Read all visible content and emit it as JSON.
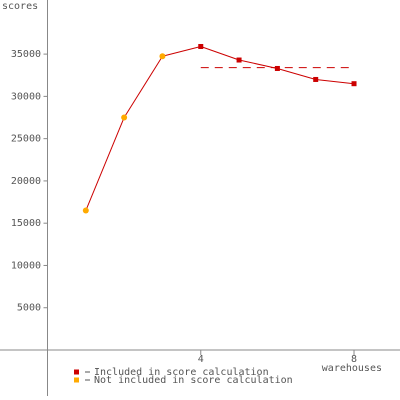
{
  "chart_data": {
    "type": "line",
    "y_label": "scores",
    "x_label": "warehouses",
    "x": [
      1,
      2,
      3,
      4,
      5,
      6,
      7,
      8
    ],
    "series": [
      {
        "name": "Included in score calculation",
        "color": "#cc0000",
        "values": [
          null,
          null,
          null,
          35900,
          34300,
          33300,
          32000,
          31500
        ]
      },
      {
        "name": "Not included in score calculation",
        "color": "#ffaa00",
        "values": [
          16500,
          27500,
          34750,
          null,
          null,
          null,
          null,
          null
        ]
      }
    ],
    "line_color": "#cc0000",
    "reference_line": {
      "value": 33400,
      "x": [
        4,
        8
      ],
      "color": "#cc0000"
    },
    "xlim": [
      0,
      9.2
    ],
    "ylim": [
      0,
      41400
    ],
    "xticks": [
      4,
      8
    ],
    "yticks": [
      5000,
      10000,
      15000,
      20000,
      25000,
      30000,
      35000
    ]
  }
}
